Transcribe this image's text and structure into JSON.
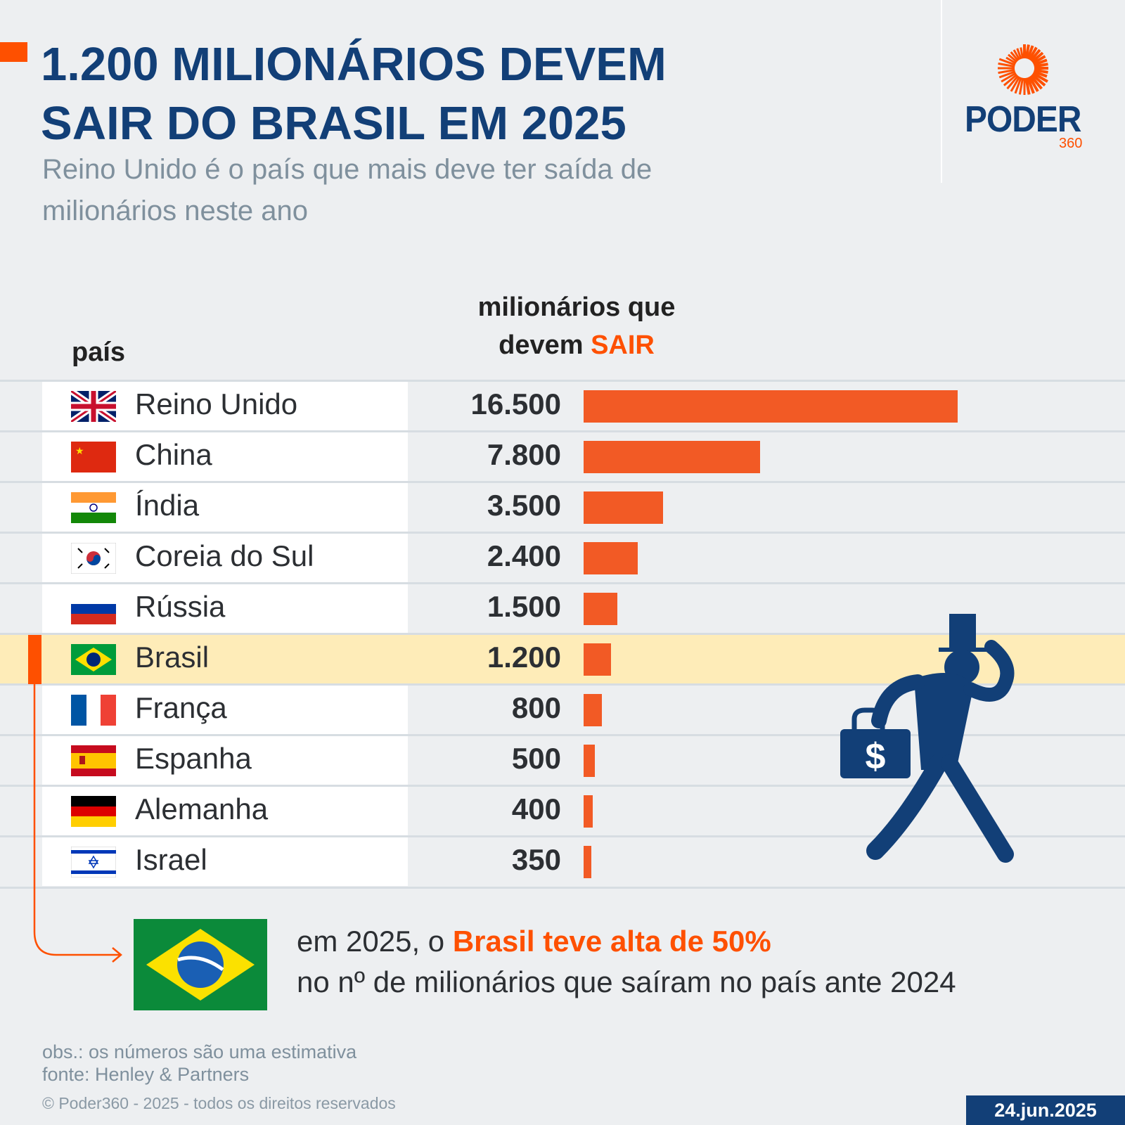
{
  "title": "1.200 MILIONÁRIOS DEVEM SAIR DO BRASIL EM 2025",
  "subtitle": "Reino Unido é o país que mais deve ter saída de milionários neste ano",
  "logo": {
    "word": "PODER",
    "number": "360"
  },
  "chart_data": {
    "type": "bar",
    "orientation": "horizontal",
    "column_headers": {
      "country": "país",
      "value_prefix": "milionários que devem",
      "value_highlight": "SAIR"
    },
    "categories": [
      "Reino Unido",
      "China",
      "Índia",
      "Coreia do Sul",
      "Rússia",
      "Brasil",
      "França",
      "Espanha",
      "Alemanha",
      "Israel"
    ],
    "values": [
      16500,
      7800,
      3500,
      2400,
      1500,
      1200,
      800,
      500,
      400,
      350
    ],
    "labels": [
      "16.500",
      "7.800",
      "3.500",
      "2.400",
      "1.500",
      "1.200",
      "800",
      "500",
      "400",
      "350"
    ],
    "flags": [
      "uk-flag",
      "china-flag",
      "india-flag",
      "south-korea-flag",
      "russia-flag",
      "brazil-flag",
      "france-flag",
      "spain-flag",
      "germany-flag",
      "israel-flag"
    ],
    "highlight": "Brasil",
    "bar_color": "#f25a25",
    "highlight_color": "#feecb8"
  },
  "note": {
    "prefix": "em 2025, o ",
    "highlight": "Brasil teve alta de 50%",
    "line2": "no nº de milionários que saíram no país ante 2024"
  },
  "footer": {
    "obs": "obs.: os números são uma estimativa",
    "source": "fonte: Henley & Partners",
    "copyright": "© Poder360 - 2025 - todos os direitos reservados",
    "date": "24.jun.2025"
  },
  "colors": {
    "accent": "#fe5000",
    "navy": "#123f77"
  }
}
